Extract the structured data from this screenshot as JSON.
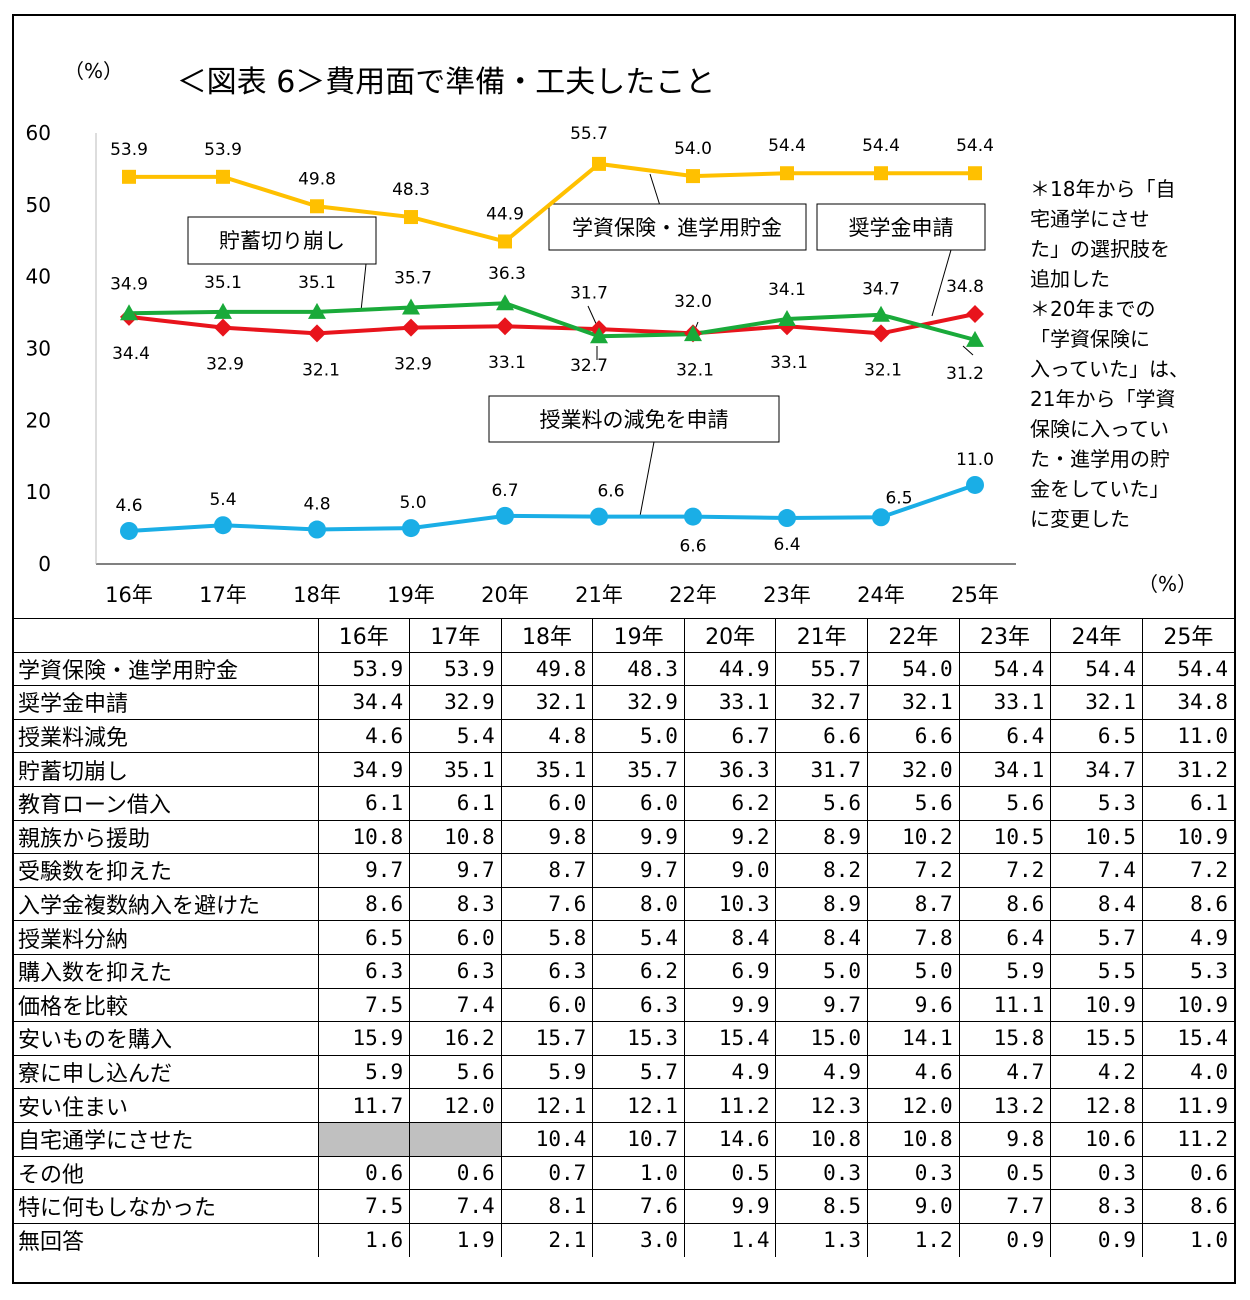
{
  "chart_data": {
    "type": "line",
    "title": "＜図表 6＞費用面で準備・工夫したこと",
    "ylabel": "（%）",
    "ylim": [
      0,
      60
    ],
    "yticks": [
      0,
      10,
      20,
      30,
      40,
      50,
      60
    ],
    "grid": false,
    "categories": [
      "16年",
      "17年",
      "18年",
      "19年",
      "20年",
      "21年",
      "22年",
      "23年",
      "24年",
      "25年"
    ],
    "series": [
      {
        "name": "学資保険・進学用貯金",
        "color": "#FFC000",
        "marker": "square",
        "values": [
          53.9,
          53.9,
          49.8,
          48.3,
          44.9,
          55.7,
          54.0,
          54.4,
          54.4,
          54.4
        ],
        "labels": [
          "53.9",
          "53.9",
          "49.8",
          "48.3",
          "44.9",
          "55.7",
          "54.0",
          "54.4",
          "54.4",
          "54.4"
        ]
      },
      {
        "name": "奨学金申請",
        "color": "#E8141C",
        "marker": "diamond",
        "values": [
          34.4,
          32.9,
          32.1,
          32.9,
          33.1,
          32.7,
          32.1,
          33.1,
          32.1,
          34.8
        ],
        "labels": [
          "34.4",
          "32.9",
          "32.1",
          "32.9",
          "33.1",
          "32.7",
          "32.1",
          "33.1",
          "32.1",
          "34.8"
        ]
      },
      {
        "name": "貯蓄切り崩し",
        "color": "#1AAA3A",
        "marker": "triangle",
        "values": [
          34.9,
          35.1,
          35.1,
          35.7,
          36.3,
          31.7,
          32.0,
          34.1,
          34.7,
          31.2
        ],
        "labels": [
          "34.9",
          "35.1",
          "35.1",
          "35.7",
          "36.3",
          "31.7",
          "32.0",
          "34.1",
          "34.7",
          "31.2"
        ]
      },
      {
        "name": "授業料の減免を申請",
        "color": "#1AAEE6",
        "marker": "circle",
        "values": [
          4.6,
          5.4,
          4.8,
          5.0,
          6.7,
          6.6,
          6.6,
          6.4,
          6.5,
          11.0
        ],
        "labels": [
          "4.6",
          "5.4",
          "4.8",
          "5.0",
          "6.7",
          "6.6",
          "6.6",
          "6.4",
          "6.5",
          "11.0"
        ]
      }
    ],
    "note": "＊18年から「自\n宅通学にさせ\nた」の選択肢を\n追加した\n＊20年までの\n「学資保険に\n入っていた」は、\n21年から「学資\n保険に入ってい\nた・進学用の貯\n金をしていた」\nに変更した",
    "table_unit": "（%）"
  },
  "table": {
    "columns": [
      "16年",
      "17年",
      "18年",
      "19年",
      "20年",
      "21年",
      "22年",
      "23年",
      "24年",
      "25年"
    ],
    "rows": [
      {
        "name": "学資保険・進学用貯金",
        "values": [
          "53.9",
          "53.9",
          "49.8",
          "48.3",
          "44.9",
          "55.7",
          "54.0",
          "54.4",
          "54.4",
          "54.4"
        ]
      },
      {
        "name": "奨学金申請",
        "values": [
          "34.4",
          "32.9",
          "32.1",
          "32.9",
          "33.1",
          "32.7",
          "32.1",
          "33.1",
          "32.1",
          "34.8"
        ]
      },
      {
        "name": "授業料減免",
        "values": [
          "4.6",
          "5.4",
          "4.8",
          "5.0",
          "6.7",
          "6.6",
          "6.6",
          "6.4",
          "6.5",
          "11.0"
        ]
      },
      {
        "name": "貯蓄切崩し",
        "values": [
          "34.9",
          "35.1",
          "35.1",
          "35.7",
          "36.3",
          "31.7",
          "32.0",
          "34.1",
          "34.7",
          "31.2"
        ]
      },
      {
        "name": "教育ローン借入",
        "values": [
          "6.1",
          "6.1",
          "6.0",
          "6.0",
          "6.2",
          "5.6",
          "5.6",
          "5.6",
          "5.3",
          "6.1"
        ]
      },
      {
        "name": "親族から援助",
        "values": [
          "10.8",
          "10.8",
          "9.8",
          "9.9",
          "9.2",
          "8.9",
          "10.2",
          "10.5",
          "10.5",
          "10.9"
        ]
      },
      {
        "name": "受験数を抑えた",
        "values": [
          "9.7",
          "9.7",
          "8.7",
          "9.7",
          "9.0",
          "8.2",
          "7.2",
          "7.2",
          "7.4",
          "7.2"
        ]
      },
      {
        "name": "入学金複数納入を避けた",
        "values": [
          "8.6",
          "8.3",
          "7.6",
          "8.0",
          "10.3",
          "8.9",
          "8.7",
          "8.6",
          "8.4",
          "8.6"
        ]
      },
      {
        "name": "授業料分納",
        "values": [
          "6.5",
          "6.0",
          "5.8",
          "5.4",
          "8.4",
          "8.4",
          "7.8",
          "6.4",
          "5.7",
          "4.9"
        ]
      },
      {
        "name": "購入数を抑えた",
        "values": [
          "6.3",
          "6.3",
          "6.3",
          "6.2",
          "6.9",
          "5.0",
          "5.0",
          "5.9",
          "5.5",
          "5.3"
        ]
      },
      {
        "name": "価格を比較",
        "values": [
          "7.5",
          "7.4",
          "6.0",
          "6.3",
          "9.9",
          "9.7",
          "9.6",
          "11.1",
          "10.9",
          "10.9"
        ]
      },
      {
        "name": "安いものを購入",
        "values": [
          "15.9",
          "16.2",
          "15.7",
          "15.3",
          "15.4",
          "15.0",
          "14.1",
          "15.8",
          "15.5",
          "15.4"
        ]
      },
      {
        "name": "寮に申し込んだ",
        "values": [
          "5.9",
          "5.6",
          "5.9",
          "5.7",
          "4.9",
          "4.9",
          "4.6",
          "4.7",
          "4.2",
          "4.0"
        ]
      },
      {
        "name": "安い住まい",
        "values": [
          "11.7",
          "12.0",
          "12.1",
          "12.1",
          "11.2",
          "12.3",
          "12.0",
          "13.2",
          "12.8",
          "11.9"
        ]
      },
      {
        "name": "自宅通学にさせた",
        "values": [
          null,
          null,
          "10.4",
          "10.7",
          "14.6",
          "10.8",
          "10.8",
          "9.8",
          "10.6",
          "11.2"
        ]
      },
      {
        "name": "その他",
        "values": [
          "0.6",
          "0.6",
          "0.7",
          "1.0",
          "0.5",
          "0.3",
          "0.3",
          "0.5",
          "0.3",
          "0.6"
        ]
      },
      {
        "name": "特に何もしなかった",
        "values": [
          "7.5",
          "7.4",
          "8.1",
          "7.6",
          "9.9",
          "8.5",
          "9.0",
          "7.7",
          "8.3",
          "8.6"
        ]
      },
      {
        "name": "無回答",
        "values": [
          "1.6",
          "1.9",
          "2.1",
          "3.0",
          "1.4",
          "1.3",
          "1.2",
          "0.9",
          "0.9",
          "1.0"
        ]
      }
    ]
  }
}
